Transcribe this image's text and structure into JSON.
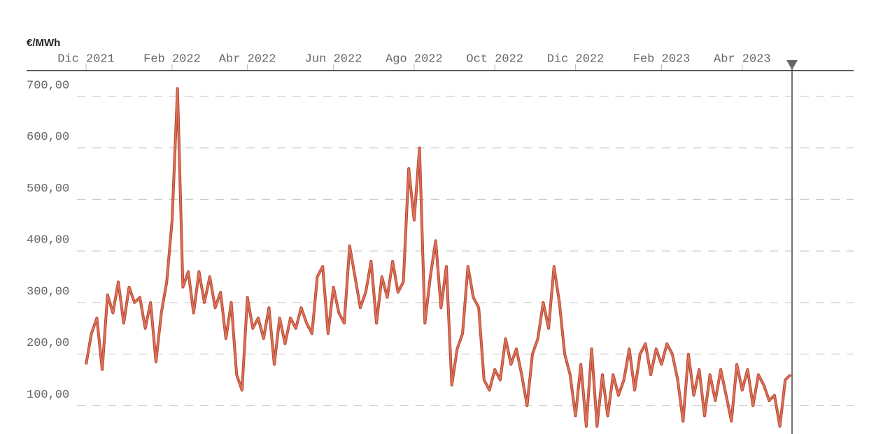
{
  "chart_data": {
    "type": "line",
    "y_unit": "€/MWh",
    "categories": [
      "Dic 2021",
      null,
      null,
      null,
      null,
      null,
      null,
      null,
      null,
      null,
      null,
      null,
      null,
      null,
      null,
      null,
      "Feb 2022",
      null,
      null,
      null,
      null,
      null,
      null,
      null,
      null,
      null,
      null,
      null,
      null,
      null,
      "Abr 2022",
      null,
      null,
      null,
      null,
      null,
      null,
      null,
      null,
      null,
      null,
      null,
      null,
      null,
      null,
      null,
      "Jun 2022",
      null,
      null,
      null,
      null,
      null,
      null,
      null,
      null,
      null,
      null,
      null,
      null,
      null,
      null,
      "Ago 2022",
      null,
      null,
      null,
      null,
      null,
      null,
      null,
      null,
      null,
      null,
      null,
      null,
      null,
      null,
      "Oct 2022",
      null,
      null,
      null,
      null,
      null,
      null,
      null,
      null,
      null,
      null,
      null,
      null,
      null,
      null,
      "Dic 2022",
      null,
      null,
      null,
      null,
      null,
      null,
      null,
      null,
      null,
      null,
      null,
      null,
      null,
      null,
      null,
      "Feb 2023",
      null,
      null,
      null,
      null,
      null,
      null,
      null,
      null,
      null,
      null,
      null,
      null,
      null,
      null,
      "Abr 2023",
      null,
      null,
      null,
      null,
      null,
      null,
      null,
      null,
      null
    ],
    "values": [
      180,
      240,
      270,
      170,
      315,
      280,
      340,
      260,
      330,
      300,
      310,
      250,
      300,
      185,
      280,
      340,
      460,
      715,
      330,
      360,
      280,
      360,
      300,
      350,
      290,
      320,
      230,
      300,
      160,
      130,
      310,
      250,
      270,
      230,
      290,
      180,
      270,
      220,
      270,
      250,
      290,
      260,
      240,
      350,
      370,
      240,
      330,
      280,
      260,
      410,
      350,
      290,
      320,
      380,
      260,
      350,
      310,
      380,
      320,
      340,
      560,
      460,
      600,
      260,
      350,
      420,
      290,
      370,
      140,
      210,
      240,
      370,
      310,
      290,
      150,
      130,
      170,
      150,
      230,
      180,
      210,
      160,
      100,
      200,
      230,
      300,
      250,
      370,
      300,
      200,
      160,
      80,
      180,
      60,
      210,
      60,
      160,
      80,
      160,
      120,
      150,
      210,
      130,
      200,
      220,
      160,
      210,
      180,
      220,
      200,
      150,
      70,
      200,
      120,
      170,
      80,
      160,
      110,
      170,
      120,
      70,
      180,
      130,
      170,
      100,
      160,
      140,
      110,
      120,
      60,
      150,
      160
    ],
    "color": "#dc735b",
    "ylim": [
      45,
      750
    ],
    "yticks": [
      {
        "value": 100,
        "label": "100,00"
      },
      {
        "value": 200,
        "label": "200,00"
      },
      {
        "value": 300,
        "label": "300,00"
      },
      {
        "value": 400,
        "label": "400,00"
      },
      {
        "value": 500,
        "label": "500,00"
      },
      {
        "value": 600,
        "label": "600,00"
      },
      {
        "value": 700,
        "label": "700,00"
      }
    ],
    "grid": true
  }
}
